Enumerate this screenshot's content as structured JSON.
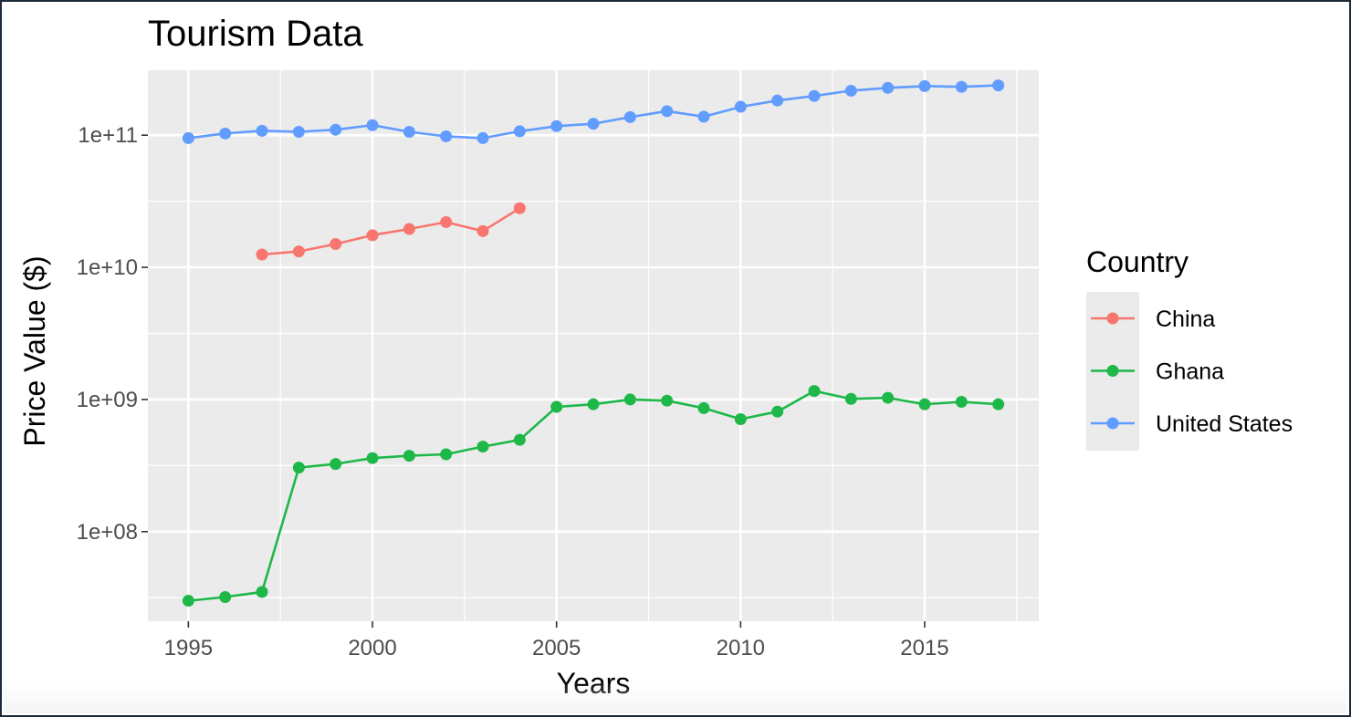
{
  "chart_data": {
    "type": "line",
    "title": "Tourism Data",
    "xlabel": "Years",
    "ylabel": "Price Value ($)",
    "y_scale": "log10",
    "xlim": [
      1993.9,
      2018.1
    ],
    "ylim": [
      21000000.0,
      310000000000.0
    ],
    "x_ticks": [
      1995,
      2000,
      2005,
      2010,
      2015
    ],
    "x_tick_labels": [
      "1995",
      "2000",
      "2005",
      "2010",
      "2015"
    ],
    "y_ticks": [
      100000000.0,
      1000000000.0,
      10000000000.0,
      100000000000.0
    ],
    "y_tick_labels": [
      "1e+08",
      "1e+09",
      "1e+10",
      "1e+11"
    ],
    "grid": true,
    "legend": {
      "title": "Country",
      "position": "right"
    },
    "series": [
      {
        "name": "China",
        "color": "#F8766D",
        "x": [
          1997,
          1998,
          1999,
          2000,
          2001,
          2002,
          2003,
          2004
        ],
        "values": [
          12500000000.0,
          13200000000.0,
          15000000000.0,
          17500000000.0,
          19500000000.0,
          22000000000.0,
          18800000000.0,
          28000000000.0
        ]
      },
      {
        "name": "Ghana",
        "color": "#1EB848",
        "x": [
          1995,
          1996,
          1997,
          1998,
          1999,
          2000,
          2001,
          2002,
          2003,
          2004,
          2005,
          2006,
          2007,
          2008,
          2009,
          2010,
          2011,
          2012,
          2013,
          2014,
          2015,
          2016,
          2017
        ],
        "values": [
          30000000.0,
          32000000.0,
          35000000.0,
          305000000.0,
          325000000.0,
          360000000.0,
          375000000.0,
          385000000.0,
          440000000.0,
          495000000.0,
          880000000.0,
          920000000.0,
          1000000000.0,
          980000000.0,
          860000000.0,
          710000000.0,
          810000000.0,
          1160000000.0,
          1010000000.0,
          1030000000.0,
          920000000.0,
          960000000.0,
          920000000.0
        ]
      },
      {
        "name": "United States",
        "color": "#619CFF",
        "x": [
          1995,
          1996,
          1997,
          1998,
          1999,
          2000,
          2001,
          2002,
          2003,
          2004,
          2005,
          2006,
          2007,
          2008,
          2009,
          2010,
          2011,
          2012,
          2013,
          2014,
          2015,
          2016,
          2017
        ],
        "values": [
          95000000000.0,
          103000000000.0,
          108000000000.0,
          106000000000.0,
          110000000000.0,
          119000000000.0,
          106000000000.0,
          98000000000.0,
          95000000000.0,
          107000000000.0,
          117000000000.0,
          122000000000.0,
          137000000000.0,
          152000000000.0,
          138000000000.0,
          164000000000.0,
          183000000000.0,
          198000000000.0,
          217000000000.0,
          228000000000.0,
          235000000000.0,
          232000000000.0,
          238000000000.0
        ]
      }
    ]
  }
}
